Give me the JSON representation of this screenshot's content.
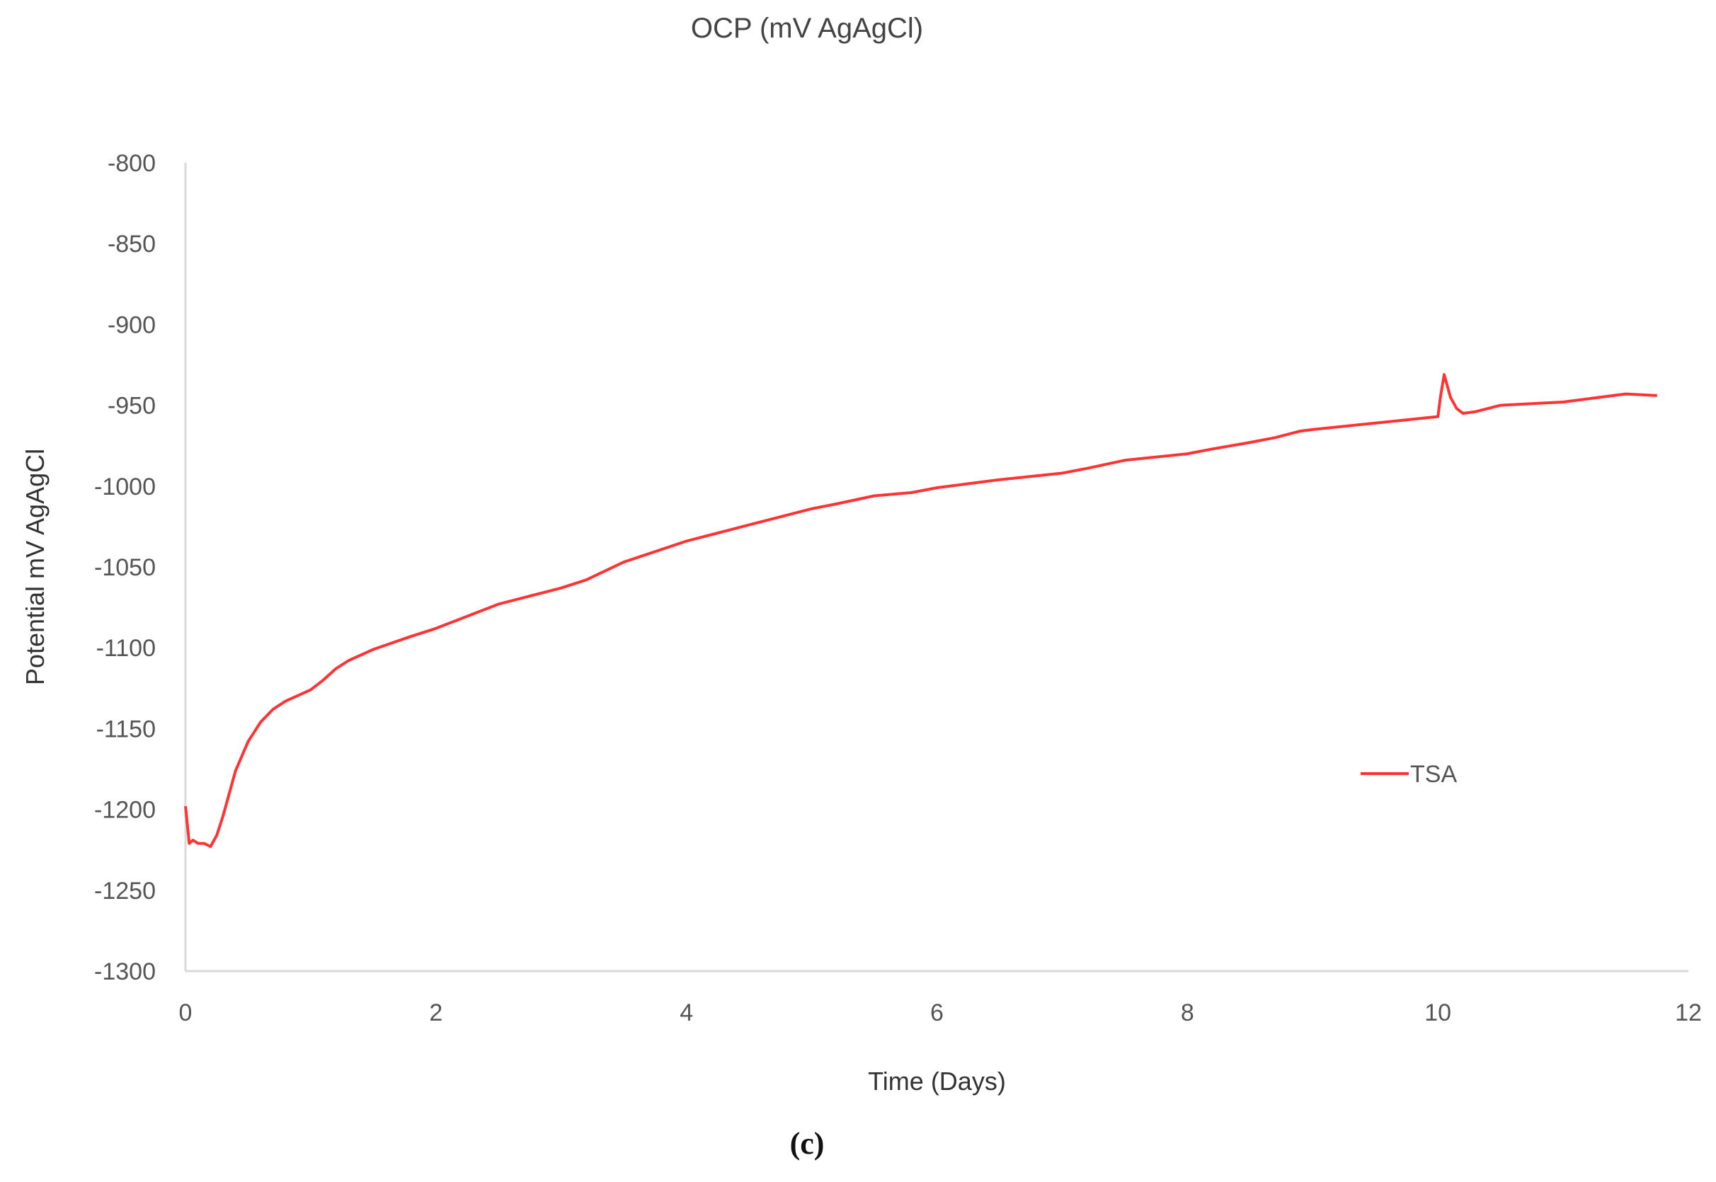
{
  "caption": "(c)",
  "chart_data": {
    "type": "line",
    "title": "OCP (mV AgAgCl)",
    "xlabel": "Time (Days)",
    "ylabel": "Potential mV AgAgCl",
    "xlim": [
      0,
      12
    ],
    "ylim": [
      -1300,
      -800
    ],
    "xticks": [
      0,
      2,
      4,
      6,
      8,
      10,
      12
    ],
    "yticks": [
      -800,
      -850,
      -900,
      -950,
      -1000,
      -1050,
      -1100,
      -1150,
      -1200,
      -1250,
      -1300
    ],
    "grid": false,
    "legend_position": "right",
    "series": [
      {
        "name": "TSA",
        "color": "#ff3333",
        "x": [
          0,
          0.03,
          0.06,
          0.1,
          0.15,
          0.2,
          0.25,
          0.3,
          0.35,
          0.4,
          0.5,
          0.6,
          0.7,
          0.8,
          1.0,
          1.1,
          1.2,
          1.3,
          1.5,
          1.8,
          2.0,
          2.5,
          3.0,
          3.2,
          3.5,
          4.0,
          4.5,
          4.8,
          5.0,
          5.2,
          5.5,
          5.8,
          6.0,
          6.5,
          7.0,
          7.2,
          7.5,
          8.0,
          8.2,
          8.5,
          8.7,
          8.9,
          9.0,
          9.5,
          10.0,
          10.02,
          10.05,
          10.1,
          10.15,
          10.2,
          10.3,
          10.5,
          11.0,
          11.5,
          11.75
        ],
        "y": [
          -1198,
          -1221,
          -1219,
          -1221,
          -1221,
          -1223,
          -1216,
          -1204,
          -1190,
          -1176,
          -1158,
          -1146,
          -1138,
          -1133,
          -1126,
          -1120,
          -1113,
          -1108,
          -1101,
          -1093,
          -1088,
          -1073,
          -1063,
          -1058,
          -1047,
          -1034,
          -1024,
          -1018,
          -1014,
          -1011,
          -1006,
          -1004,
          -1001,
          -996,
          -992,
          -989,
          -984,
          -980,
          -977,
          -973,
          -970,
          -966,
          -965,
          -961,
          -957,
          -945,
          -931,
          -945,
          -952,
          -955,
          -954,
          -950,
          -948,
          -943,
          -944
        ]
      }
    ]
  }
}
